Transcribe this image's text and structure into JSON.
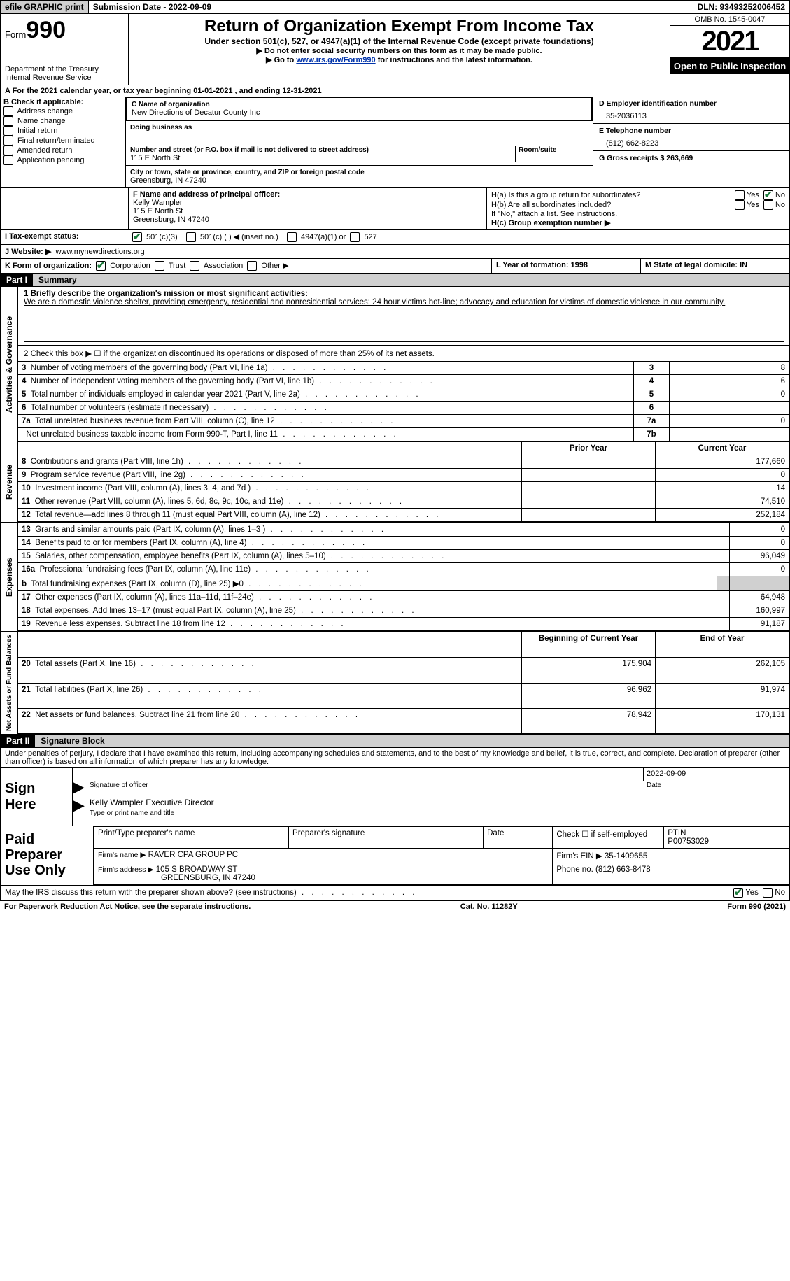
{
  "topbar": {
    "efile_label": "efile GRAPHIC print",
    "submission_label": "Submission Date - 2022-09-09",
    "dln_label": "DLN: 93493252006452"
  },
  "header": {
    "form_word": "Form",
    "form_no": "990",
    "title": "Return of Organization Exempt From Income Tax",
    "subtitle": "Under section 501(c), 527, or 4947(a)(1) of the Internal Revenue Code (except private foundations)",
    "instr1": "▶ Do not enter social security numbers on this form as it may be made public.",
    "instr2_pre": "▶ Go to ",
    "instr2_link": "www.irs.gov/Form990",
    "instr2_post": " for instructions and the latest information.",
    "dept": "Department of the Treasury",
    "irs": "Internal Revenue Service",
    "omb": "OMB No. 1545-0047",
    "year": "2021",
    "open": "Open to Public Inspection"
  },
  "lineA": "A For the 2021 calendar year, or tax year beginning 01-01-2021   , and ending 12-31-2021",
  "colB": {
    "title": "B Check if applicable:",
    "items": [
      "Address change",
      "Name change",
      "Initial return",
      "Final return/terminated",
      "Amended return",
      "Application pending"
    ]
  },
  "colC": {
    "name_label": "C Name of organization",
    "name": "New Directions of Decatur County Inc",
    "dba_label": "Doing business as",
    "addr_label": "Number and street (or P.O. box if mail is not delivered to street address)",
    "room_label": "Room/suite",
    "addr": "115 E North St",
    "city_label": "City or town, state or province, country, and ZIP or foreign postal code",
    "city": "Greensburg, IN  47240"
  },
  "colD": {
    "ein_label": "D Employer identification number",
    "ein": "35-2036113",
    "tel_label": "E Telephone number",
    "tel": "(812) 662-8223",
    "gross_label": "G Gross receipts $ 263,669"
  },
  "rowF": {
    "label": "F  Name and address of principal officer:",
    "l1": "Kelly Wampler",
    "l2": "115 E North St",
    "l3": "Greensburg, IN  47240"
  },
  "rowH": {
    "ha": "H(a)  Is this a group return for subordinates?",
    "hb": "H(b)  Are all subordinates included?",
    "hb_note": "If \"No,\" attach a list. See instructions.",
    "hc": "H(c)  Group exemption number ▶",
    "yes": "Yes",
    "no": "No"
  },
  "rowI": {
    "label": "I    Tax-exempt status:",
    "c3": "501(c)(3)",
    "c": "501(c) (  ) ◀ (insert no.)",
    "a1": "4947(a)(1) or",
    "s527": "527"
  },
  "rowJ": {
    "label": "J   Website: ▶",
    "url": "www.mynewdirections.org"
  },
  "rowK": {
    "label": "K Form of organization:",
    "corp": "Corporation",
    "trust": "Trust",
    "assoc": "Association",
    "other": "Other ▶",
    "l_label": "L Year of formation: 1998",
    "m_label": "M State of legal domicile: IN"
  },
  "part1": {
    "tag": "Part I",
    "title": "Summary"
  },
  "summary": {
    "q1_label": "1  Briefly describe the organization's mission or most significant activities:",
    "q1_text": "We are a domestic violence shelter, providing emergency, residential and nonresidential services: 24 hour victims hot-line; advocacy and education for victims of domestic violence in our community.",
    "q2": "2   Check this box ▶ ☐  if the organization discontinued its operations or disposed of more than 25% of its net assets.",
    "rows_ag": [
      {
        "n": "3",
        "t": "Number of voting members of the governing body (Part VI, line 1a)",
        "box": "3",
        "v": "8"
      },
      {
        "n": "4",
        "t": "Number of independent voting members of the governing body (Part VI, line 1b)",
        "box": "4",
        "v": "6"
      },
      {
        "n": "5",
        "t": "Total number of individuals employed in calendar year 2021 (Part V, line 2a)",
        "box": "5",
        "v": "0"
      },
      {
        "n": "6",
        "t": "Total number of volunteers (estimate if necessary)",
        "box": "6",
        "v": ""
      },
      {
        "n": "7a",
        "t": "Total unrelated business revenue from Part VIII, column (C), line 12",
        "box": "7a",
        "v": "0"
      },
      {
        "n": "",
        "t": "Net unrelated business taxable income from Form 990-T, Part I, line 11",
        "box": "7b",
        "v": ""
      }
    ],
    "col_prior": "Prior Year",
    "col_curr": "Current Year",
    "rev": [
      {
        "n": "8",
        "t": "Contributions and grants (Part VIII, line 1h)",
        "p": "",
        "c": "177,660"
      },
      {
        "n": "9",
        "t": "Program service revenue (Part VIII, line 2g)",
        "p": "",
        "c": "0"
      },
      {
        "n": "10",
        "t": "Investment income (Part VIII, column (A), lines 3, 4, and 7d )",
        "p": "",
        "c": "14"
      },
      {
        "n": "11",
        "t": "Other revenue (Part VIII, column (A), lines 5, 6d, 8c, 9c, 10c, and 11e)",
        "p": "",
        "c": "74,510"
      },
      {
        "n": "12",
        "t": "Total revenue—add lines 8 through 11 (must equal Part VIII, column (A), line 12)",
        "p": "",
        "c": "252,184"
      }
    ],
    "exp": [
      {
        "n": "13",
        "t": "Grants and similar amounts paid (Part IX, column (A), lines 1–3 )",
        "p": "",
        "c": "0"
      },
      {
        "n": "14",
        "t": "Benefits paid to or for members (Part IX, column (A), line 4)",
        "p": "",
        "c": "0"
      },
      {
        "n": "15",
        "t": "Salaries, other compensation, employee benefits (Part IX, column (A), lines 5–10)",
        "p": "",
        "c": "96,049"
      },
      {
        "n": "16a",
        "t": "Professional fundraising fees (Part IX, column (A), line 11e)",
        "p": "",
        "c": "0"
      },
      {
        "n": "b",
        "t": "Total fundraising expenses (Part IX, column (D), line 25) ▶0",
        "p": "shade",
        "c": "shade"
      },
      {
        "n": "17",
        "t": "Other expenses (Part IX, column (A), lines 11a–11d, 11f–24e)",
        "p": "",
        "c": "64,948"
      },
      {
        "n": "18",
        "t": "Total expenses. Add lines 13–17 (must equal Part IX, column (A), line 25)",
        "p": "",
        "c": "160,997"
      },
      {
        "n": "19",
        "t": "Revenue less expenses. Subtract line 18 from line 12",
        "p": "",
        "c": "91,187"
      }
    ],
    "col_begin": "Beginning of Current Year",
    "col_end": "End of Year",
    "net": [
      {
        "n": "20",
        "t": "Total assets (Part X, line 16)",
        "p": "175,904",
        "c": "262,105"
      },
      {
        "n": "21",
        "t": "Total liabilities (Part X, line 26)",
        "p": "96,962",
        "c": "91,974"
      },
      {
        "n": "22",
        "t": "Net assets or fund balances. Subtract line 21 from line 20",
        "p": "78,942",
        "c": "170,131"
      }
    ],
    "side_ag": "Activities & Governance",
    "side_rev": "Revenue",
    "side_exp": "Expenses",
    "side_net": "Net Assets or Fund Balances"
  },
  "part2": {
    "tag": "Part II",
    "title": "Signature Block"
  },
  "declare": "Under penalties of perjury, I declare that I have examined this return, including accompanying schedules and statements, and to the best of my knowledge and belief, it is true, correct, and complete. Declaration of preparer (other than officer) is based on all information of which preparer has any knowledge.",
  "sign": {
    "here": "Sign Here",
    "sig_label": "Signature of officer",
    "date": "2022-09-09",
    "date_label": "Date",
    "name": "Kelly Wampler  Executive Director",
    "name_label": "Type or print name and title"
  },
  "prep": {
    "title": "Paid Preparer Use Only",
    "h1": "Print/Type preparer's name",
    "h2": "Preparer's signature",
    "h3": "Date",
    "h4_pre": "Check ☐ if self-employed",
    "h5": "PTIN",
    "ptin": "P00753029",
    "firm_name_label": "Firm's name   ▶",
    "firm_name": "RAVER CPA GROUP PC",
    "firm_ein_label": "Firm's EIN ▶ 35-1409655",
    "firm_addr_label": "Firm's address ▶",
    "firm_addr1": "105 S BROADWAY ST",
    "firm_addr2": "GREENSBURG, IN  47240",
    "firm_phone": "Phone no. (812) 663-8478"
  },
  "may_irs": "May the IRS discuss this return with the preparer shown above? (see instructions)",
  "yes": "Yes",
  "no": "No",
  "footer": {
    "left": "For Paperwork Reduction Act Notice, see the separate instructions.",
    "mid": "Cat. No. 11282Y",
    "right": "Form 990 (2021)"
  },
  "b_tag": "b"
}
